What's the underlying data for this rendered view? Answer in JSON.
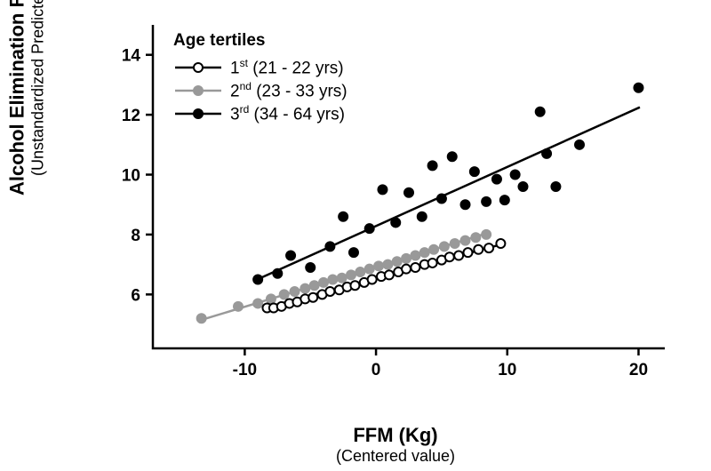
{
  "chart": {
    "type": "scatter_with_regression",
    "background_color": "#ffffff",
    "axis_color": "#000000",
    "axis_line_width": 2.5,
    "tick_length": 8,
    "tick_label_fontsize": 19,
    "tick_label_fontweight": "bold",
    "title_y_main": "Alcohol Elimination Rate (g/h)",
    "title_y_sub": "(Unstandardized Predicted Value)",
    "title_x_main": "FFM (Kg)",
    "title_x_sub": "(Centered value)",
    "title_fontsize_main": 22,
    "title_fontsize_sub": 18,
    "xlim": [
      -17,
      22
    ],
    "ylim": [
      4.2,
      15
    ],
    "x_ticks": [
      -10,
      0,
      10,
      20
    ],
    "y_ticks": [
      6,
      8,
      10,
      12,
      14
    ],
    "marker_radius": 5,
    "marker_stroke_width": 2,
    "line_width": 2.5,
    "legend": {
      "title": "Age tertiles",
      "title_fontweight": "bold",
      "items": [
        {
          "series": "s1",
          "label_pre": "1",
          "label_sup": "st",
          "label_post": " (21 - 22 yrs)"
        },
        {
          "series": "s2",
          "label_pre": "2",
          "label_sup": "nd",
          "label_post": " (23 - 33 yrs)"
        },
        {
          "series": "s3",
          "label_pre": "3",
          "label_sup": "rd",
          "label_post": " (34 - 64 yrs)"
        }
      ]
    },
    "series": {
      "s1": {
        "name": "1st (21–22 yrs)",
        "color": "#000000",
        "marker_fill": "#ffffff",
        "marker_stroke": "#000000",
        "line": {
          "x1": -8.5,
          "y1": 5.55,
          "x2": 9.8,
          "y2": 7.7
        },
        "points": [
          [
            -8.3,
            5.55
          ],
          [
            -7.8,
            5.55
          ],
          [
            -7.2,
            5.6
          ],
          [
            -6.6,
            5.7
          ],
          [
            -6.0,
            5.75
          ],
          [
            -5.4,
            5.85
          ],
          [
            -4.8,
            5.9
          ],
          [
            -4.1,
            6.0
          ],
          [
            -3.5,
            6.1
          ],
          [
            -2.8,
            6.15
          ],
          [
            -2.2,
            6.25
          ],
          [
            -1.6,
            6.3
          ],
          [
            -0.9,
            6.4
          ],
          [
            -0.3,
            6.5
          ],
          [
            0.4,
            6.6
          ],
          [
            1.0,
            6.65
          ],
          [
            1.7,
            6.75
          ],
          [
            2.3,
            6.85
          ],
          [
            3.0,
            6.9
          ],
          [
            3.7,
            7.0
          ],
          [
            4.3,
            7.05
          ],
          [
            5.0,
            7.15
          ],
          [
            5.6,
            7.25
          ],
          [
            6.3,
            7.3
          ],
          [
            7.0,
            7.4
          ],
          [
            7.8,
            7.5
          ],
          [
            8.6,
            7.55
          ],
          [
            9.5,
            7.7
          ]
        ]
      },
      "s2": {
        "name": "2nd (23–33 yrs)",
        "color": "#999999",
        "marker_fill": "#999999",
        "marker_stroke": "#999999",
        "line": {
          "x1": -13.3,
          "y1": 5.15,
          "x2": 8.5,
          "y2": 8.05
        },
        "points": [
          [
            -13.3,
            5.2
          ],
          [
            -10.5,
            5.6
          ],
          [
            -9.0,
            5.7
          ],
          [
            -8.0,
            5.85
          ],
          [
            -7.0,
            6.0
          ],
          [
            -6.2,
            6.1
          ],
          [
            -5.4,
            6.2
          ],
          [
            -4.7,
            6.3
          ],
          [
            -4.0,
            6.4
          ],
          [
            -3.3,
            6.5
          ],
          [
            -2.6,
            6.55
          ],
          [
            -1.9,
            6.65
          ],
          [
            -1.2,
            6.75
          ],
          [
            -0.5,
            6.85
          ],
          [
            0.2,
            6.95
          ],
          [
            0.9,
            7.0
          ],
          [
            1.6,
            7.1
          ],
          [
            2.3,
            7.2
          ],
          [
            3.0,
            7.3
          ],
          [
            3.7,
            7.4
          ],
          [
            4.4,
            7.5
          ],
          [
            5.2,
            7.6
          ],
          [
            6.0,
            7.7
          ],
          [
            6.8,
            7.8
          ],
          [
            7.6,
            7.9
          ],
          [
            8.4,
            8.0
          ]
        ]
      },
      "s3": {
        "name": "3rd (34–64 yrs)",
        "color": "#000000",
        "marker_fill": "#000000",
        "marker_stroke": "#000000",
        "line": {
          "x1": -9.3,
          "y1": 6.45,
          "x2": 20.1,
          "y2": 12.25
        },
        "points": [
          [
            -9.0,
            6.5
          ],
          [
            -7.5,
            6.7
          ],
          [
            -6.5,
            7.3
          ],
          [
            -5.0,
            6.9
          ],
          [
            -3.5,
            7.6
          ],
          [
            -2.5,
            8.6
          ],
          [
            -1.7,
            7.4
          ],
          [
            -0.5,
            8.2
          ],
          [
            0.5,
            9.5
          ],
          [
            1.5,
            8.4
          ],
          [
            2.5,
            9.4
          ],
          [
            3.5,
            8.6
          ],
          [
            4.3,
            10.3
          ],
          [
            5.0,
            9.2
          ],
          [
            5.8,
            10.6
          ],
          [
            6.8,
            9.0
          ],
          [
            7.5,
            10.1
          ],
          [
            8.4,
            9.1
          ],
          [
            9.2,
            9.85
          ],
          [
            9.8,
            9.15
          ],
          [
            10.6,
            10.0
          ],
          [
            11.2,
            9.6
          ],
          [
            12.5,
            12.1
          ],
          [
            13.0,
            10.7
          ],
          [
            13.7,
            9.6
          ],
          [
            15.5,
            11.0
          ],
          [
            20.0,
            12.9
          ]
        ]
      }
    }
  }
}
